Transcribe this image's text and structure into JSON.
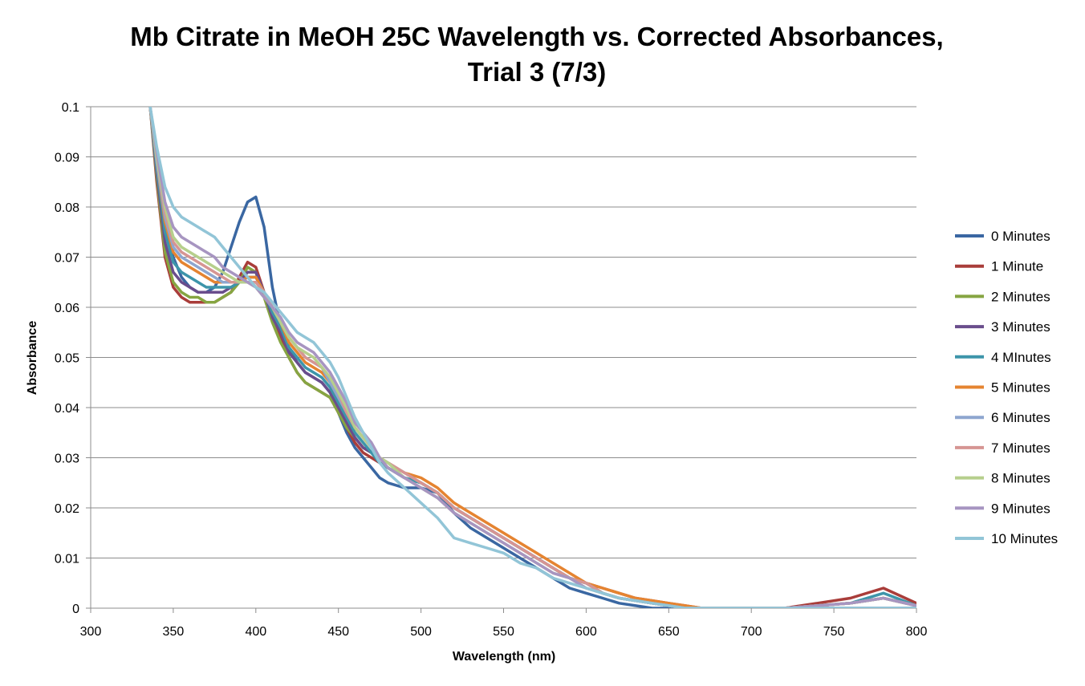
{
  "chart_data": {
    "type": "line",
    "title_lines": [
      "Mb Citrate in MeOH 25C Wavelength vs. Corrected Absorbances,",
      "Trial 3 (7/3)"
    ],
    "xlabel": "Wavelength (nm)",
    "ylabel": "Absorbance",
    "xlim": [
      300,
      800
    ],
    "ylim": [
      0,
      0.1
    ],
    "x_ticks": [
      300,
      350,
      400,
      450,
      500,
      550,
      600,
      650,
      700,
      750,
      800
    ],
    "y_ticks": [
      0,
      0.01,
      0.02,
      0.03,
      0.04,
      0.05,
      0.06,
      0.07,
      0.08,
      0.09,
      0.1
    ],
    "y_tick_labels": [
      "0",
      "0.01",
      "0.02",
      "0.03",
      "0.04",
      "0.05",
      "0.06",
      "0.07",
      "0.08",
      "0.09",
      "0.1"
    ],
    "x_tick_labels": [
      "300",
      "350",
      "400",
      "450",
      "500",
      "550",
      "600",
      "650",
      "700",
      "750",
      "800"
    ],
    "grid": "horizontal",
    "legend_position": "right",
    "x": [
      336,
      340,
      345,
      350,
      355,
      360,
      365,
      370,
      375,
      380,
      385,
      390,
      395,
      400,
      405,
      410,
      415,
      420,
      425,
      430,
      435,
      440,
      445,
      450,
      455,
      460,
      465,
      470,
      475,
      480,
      490,
      500,
      510,
      520,
      530,
      540,
      550,
      560,
      570,
      580,
      590,
      600,
      610,
      620,
      630,
      640,
      650,
      660,
      670,
      680,
      700,
      720,
      740,
      760,
      780,
      800
    ],
    "series": [
      {
        "name": "0 Minutes",
        "color": "#3a67a2",
        "values": [
          0.1,
          0.089,
          0.077,
          0.07,
          0.066,
          0.064,
          0.063,
          0.063,
          0.064,
          0.067,
          0.072,
          0.077,
          0.081,
          0.082,
          0.076,
          0.064,
          0.056,
          0.052,
          0.049,
          0.047,
          0.046,
          0.045,
          0.043,
          0.039,
          0.035,
          0.032,
          0.03,
          0.028,
          0.026,
          0.025,
          0.024,
          0.024,
          0.023,
          0.019,
          0.016,
          0.014,
          0.012,
          0.01,
          0.008,
          0.006,
          0.004,
          0.003,
          0.002,
          0.001,
          0.0005,
          0,
          0,
          0,
          0,
          0,
          0,
          0,
          0,
          0,
          0,
          0
        ]
      },
      {
        "name": "1 Minute",
        "color": "#a93d3a",
        "values": [
          0.1,
          0.085,
          0.07,
          0.064,
          0.062,
          0.061,
          0.061,
          0.061,
          0.061,
          0.062,
          0.063,
          0.066,
          0.069,
          0.068,
          0.063,
          0.058,
          0.054,
          0.05,
          0.047,
          0.045,
          0.044,
          0.043,
          0.042,
          0.039,
          0.036,
          0.033,
          0.031,
          0.03,
          0.029,
          0.028,
          0.026,
          0.025,
          0.023,
          0.02,
          0.018,
          0.016,
          0.014,
          0.012,
          0.01,
          0.008,
          0.006,
          0.005,
          0.004,
          0.003,
          0.002,
          0.0015,
          0.001,
          0.0005,
          0,
          0,
          0,
          0,
          0.001,
          0.002,
          0.004,
          0.001
        ]
      },
      {
        "name": "2 Minutes",
        "color": "#86a542",
        "values": [
          0.1,
          0.086,
          0.071,
          0.065,
          0.063,
          0.062,
          0.062,
          0.061,
          0.061,
          0.062,
          0.063,
          0.065,
          0.068,
          0.067,
          0.062,
          0.057,
          0.053,
          0.05,
          0.047,
          0.045,
          0.044,
          0.043,
          0.042,
          0.039,
          0.036,
          0.034,
          0.032,
          0.031,
          0.029,
          0.028,
          0.026,
          0.025,
          0.023,
          0.02,
          0.018,
          0.016,
          0.014,
          0.012,
          0.01,
          0.008,
          0.006,
          0.005,
          0.003,
          0.002,
          0.0015,
          0.001,
          0.0005,
          0,
          0,
          0,
          0,
          0,
          0.0005,
          0.001,
          0.002,
          0.0005
        ]
      },
      {
        "name": "3 Minutes",
        "color": "#6a4d8c",
        "values": [
          0.1,
          0.087,
          0.073,
          0.067,
          0.065,
          0.064,
          0.063,
          0.063,
          0.063,
          0.063,
          0.064,
          0.065,
          0.067,
          0.067,
          0.063,
          0.058,
          0.055,
          0.051,
          0.049,
          0.047,
          0.046,
          0.045,
          0.043,
          0.04,
          0.037,
          0.034,
          0.032,
          0.031,
          0.029,
          0.028,
          0.026,
          0.025,
          0.023,
          0.02,
          0.018,
          0.016,
          0.014,
          0.012,
          0.01,
          0.008,
          0.006,
          0.005,
          0.003,
          0.002,
          0.0015,
          0.001,
          0.0005,
          0,
          0,
          0,
          0,
          0,
          0.0005,
          0.001,
          0.002,
          0.0005
        ]
      },
      {
        "name": "4 MInutes",
        "color": "#3d95aa",
        "values": [
          0.1,
          0.088,
          0.075,
          0.069,
          0.067,
          0.066,
          0.065,
          0.064,
          0.064,
          0.064,
          0.064,
          0.065,
          0.066,
          0.066,
          0.063,
          0.059,
          0.056,
          0.052,
          0.05,
          0.048,
          0.047,
          0.046,
          0.044,
          0.041,
          0.038,
          0.035,
          0.033,
          0.031,
          0.029,
          0.028,
          0.026,
          0.025,
          0.023,
          0.02,
          0.018,
          0.016,
          0.014,
          0.012,
          0.01,
          0.008,
          0.006,
          0.005,
          0.003,
          0.002,
          0.0015,
          0.001,
          0.0005,
          0,
          0,
          0,
          0,
          0,
          0.0005,
          0.001,
          0.003,
          0.0005
        ]
      },
      {
        "name": "5 Minutes",
        "color": "#e58431",
        "values": [
          0.1,
          0.089,
          0.077,
          0.071,
          0.069,
          0.068,
          0.067,
          0.066,
          0.065,
          0.065,
          0.065,
          0.065,
          0.066,
          0.066,
          0.063,
          0.06,
          0.057,
          0.053,
          0.051,
          0.049,
          0.048,
          0.047,
          0.045,
          0.042,
          0.039,
          0.036,
          0.034,
          0.032,
          0.03,
          0.029,
          0.027,
          0.026,
          0.024,
          0.021,
          0.019,
          0.017,
          0.015,
          0.013,
          0.011,
          0.009,
          0.007,
          0.005,
          0.004,
          0.003,
          0.002,
          0.0015,
          0.001,
          0.0005,
          0,
          0,
          0,
          0,
          0.0005,
          0.001,
          0.002,
          0.0005
        ]
      },
      {
        "name": "6 Minutes",
        "color": "#8ea6cf",
        "values": [
          0.1,
          0.089,
          0.078,
          0.072,
          0.07,
          0.069,
          0.068,
          0.067,
          0.066,
          0.065,
          0.065,
          0.065,
          0.065,
          0.065,
          0.063,
          0.06,
          0.057,
          0.054,
          0.052,
          0.05,
          0.049,
          0.048,
          0.045,
          0.042,
          0.039,
          0.036,
          0.034,
          0.032,
          0.03,
          0.029,
          0.027,
          0.025,
          0.023,
          0.02,
          0.018,
          0.016,
          0.014,
          0.012,
          0.01,
          0.008,
          0.006,
          0.005,
          0.003,
          0.002,
          0.0015,
          0.001,
          0.0005,
          0,
          0,
          0,
          0,
          0,
          0.0005,
          0.001,
          0.002,
          0.0005
        ]
      },
      {
        "name": "7 Minutes",
        "color": "#d69593",
        "values": [
          0.1,
          0.09,
          0.079,
          0.073,
          0.071,
          0.07,
          0.069,
          0.068,
          0.067,
          0.066,
          0.065,
          0.065,
          0.065,
          0.065,
          0.063,
          0.06,
          0.057,
          0.054,
          0.052,
          0.05,
          0.049,
          0.048,
          0.046,
          0.043,
          0.039,
          0.036,
          0.034,
          0.032,
          0.03,
          0.029,
          0.027,
          0.025,
          0.023,
          0.02,
          0.018,
          0.016,
          0.014,
          0.012,
          0.01,
          0.008,
          0.006,
          0.005,
          0.003,
          0.002,
          0.0015,
          0.001,
          0.0005,
          0,
          0,
          0,
          0,
          0,
          0.0005,
          0.001,
          0.002,
          0.0005
        ]
      },
      {
        "name": "8 Minutes",
        "color": "#b6cf8c",
        "values": [
          0.1,
          0.09,
          0.08,
          0.074,
          0.072,
          0.071,
          0.07,
          0.069,
          0.068,
          0.067,
          0.066,
          0.065,
          0.065,
          0.064,
          0.062,
          0.06,
          0.057,
          0.054,
          0.052,
          0.051,
          0.05,
          0.048,
          0.046,
          0.043,
          0.04,
          0.036,
          0.034,
          0.032,
          0.03,
          0.029,
          0.026,
          0.024,
          0.022,
          0.019,
          0.017,
          0.015,
          0.013,
          0.011,
          0.009,
          0.007,
          0.006,
          0.004,
          0.003,
          0.002,
          0.0015,
          0.001,
          0.0005,
          0,
          0,
          0,
          0,
          0,
          0.0005,
          0.001,
          0.002,
          0.0005
        ]
      },
      {
        "name": "9 Minutes",
        "color": "#a795c1",
        "values": [
          0.1,
          0.091,
          0.081,
          0.076,
          0.074,
          0.073,
          0.072,
          0.071,
          0.07,
          0.068,
          0.067,
          0.066,
          0.065,
          0.064,
          0.062,
          0.06,
          0.058,
          0.055,
          0.053,
          0.052,
          0.051,
          0.049,
          0.047,
          0.044,
          0.041,
          0.037,
          0.035,
          0.033,
          0.03,
          0.028,
          0.026,
          0.024,
          0.022,
          0.019,
          0.017,
          0.015,
          0.013,
          0.011,
          0.009,
          0.007,
          0.006,
          0.004,
          0.003,
          0.002,
          0.0015,
          0.001,
          0.0005,
          0,
          0,
          0,
          0,
          0,
          0.0005,
          0.001,
          0.002,
          0.0005
        ]
      },
      {
        "name": "10 Minutes",
        "color": "#92c5d7",
        "values": [
          0.1,
          0.092,
          0.084,
          0.08,
          0.078,
          0.077,
          0.076,
          0.075,
          0.074,
          0.072,
          0.07,
          0.068,
          0.066,
          0.064,
          0.063,
          0.061,
          0.059,
          0.057,
          0.055,
          0.054,
          0.053,
          0.051,
          0.049,
          0.046,
          0.042,
          0.038,
          0.035,
          0.032,
          0.029,
          0.027,
          0.024,
          0.021,
          0.018,
          0.014,
          0.013,
          0.012,
          0.011,
          0.009,
          0.008,
          0.006,
          0.005,
          0.004,
          0.003,
          0.002,
          0.0015,
          0.001,
          0.0005,
          0,
          0,
          0,
          0,
          0,
          0,
          0,
          0,
          0
        ]
      }
    ]
  }
}
